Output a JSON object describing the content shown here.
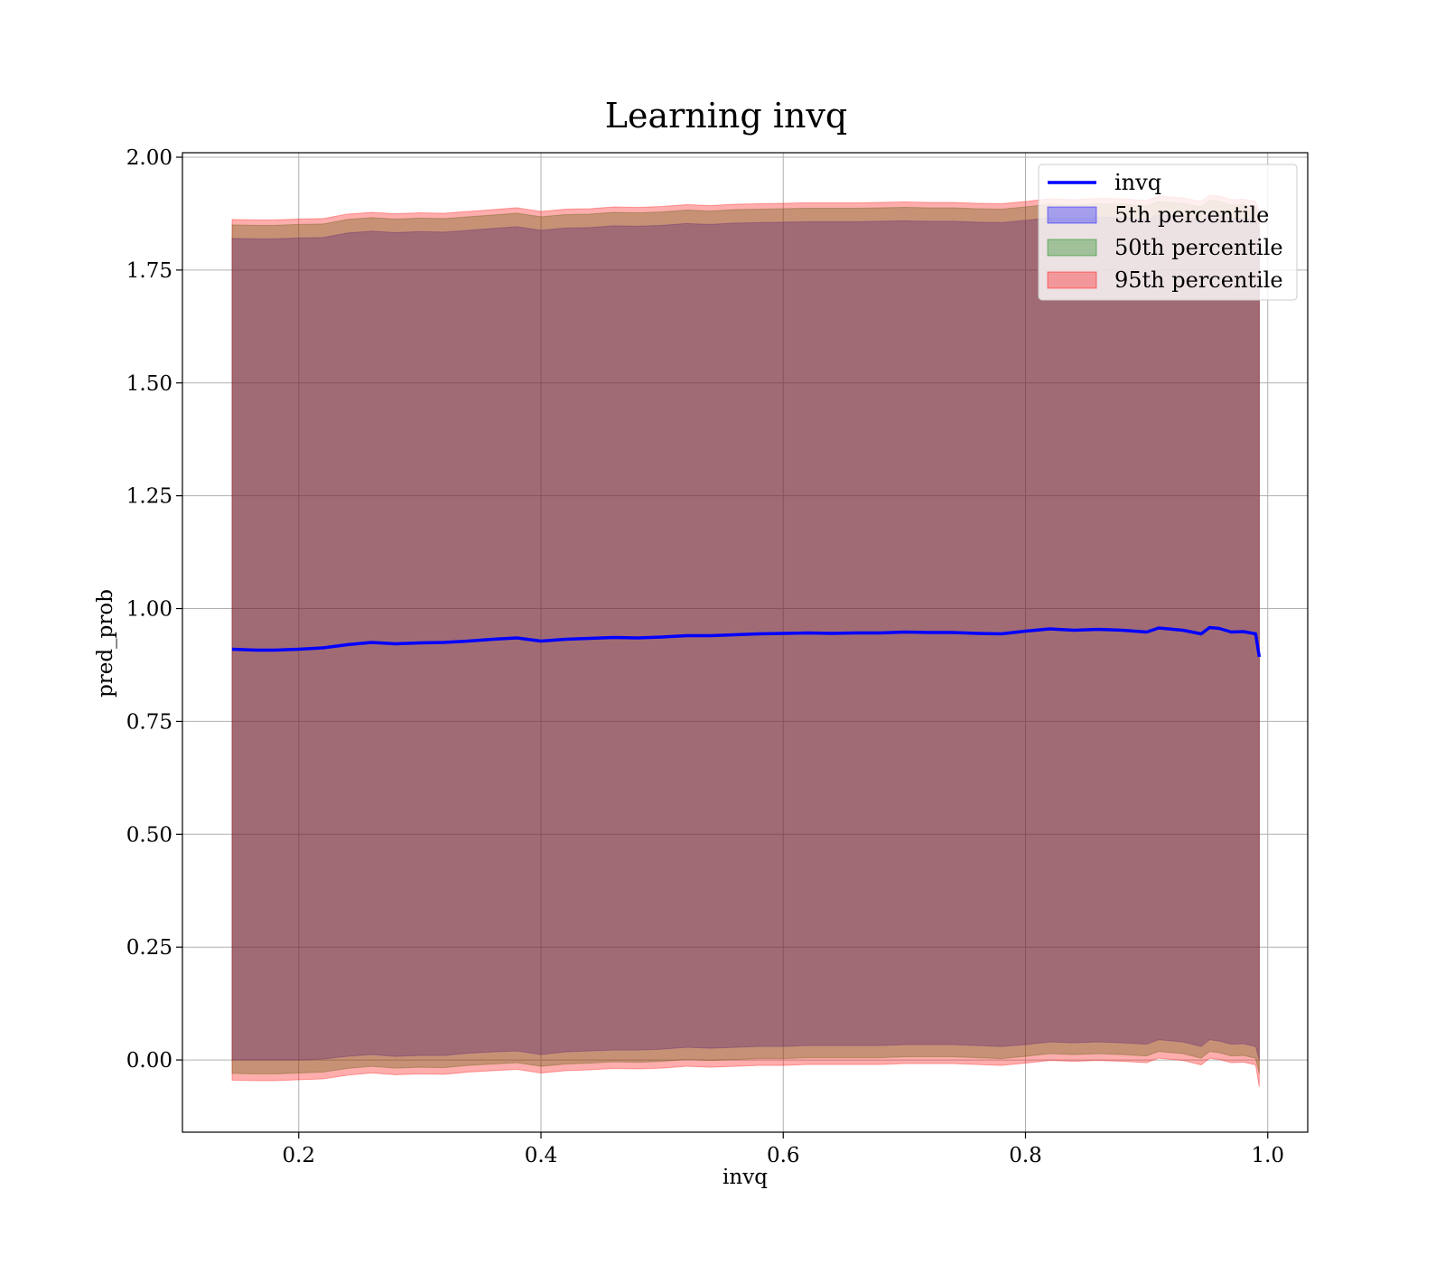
{
  "chart_data": {
    "type": "area",
    "title": "Learning invq",
    "xlabel": "invq",
    "ylabel": "pred_prob",
    "xlim": [
      0.104,
      1.033
    ],
    "ylim": [
      -0.16,
      2.01
    ],
    "xticks": [
      0.2,
      0.4,
      0.6,
      0.8,
      1.0
    ],
    "xtick_labels": [
      "0.2",
      "0.4",
      "0.6",
      "0.8",
      "1.0"
    ],
    "yticks": [
      0.0,
      0.25,
      0.5,
      0.75,
      1.0,
      1.25,
      1.5,
      1.75,
      2.0
    ],
    "ytick_labels": [
      "0.00",
      "0.25",
      "0.50",
      "0.75",
      "1.00",
      "1.25",
      "1.50",
      "1.75",
      "2.00"
    ],
    "grid": true,
    "legend_position": "top-right",
    "x": [
      0.145,
      0.165,
      0.18,
      0.2,
      0.22,
      0.24,
      0.26,
      0.28,
      0.3,
      0.32,
      0.34,
      0.36,
      0.38,
      0.4,
      0.42,
      0.44,
      0.46,
      0.48,
      0.5,
      0.52,
      0.54,
      0.56,
      0.58,
      0.6,
      0.62,
      0.64,
      0.66,
      0.68,
      0.7,
      0.72,
      0.74,
      0.76,
      0.78,
      0.8,
      0.82,
      0.84,
      0.86,
      0.88,
      0.9,
      0.91,
      0.93,
      0.945,
      0.952,
      0.96,
      0.97,
      0.98,
      0.99,
      0.993
    ],
    "series": [
      {
        "name": "invq",
        "kind": "line",
        "color": "#0000ff",
        "values": [
          0.91,
          0.908,
          0.908,
          0.91,
          0.913,
          0.92,
          0.925,
          0.922,
          0.924,
          0.925,
          0.928,
          0.932,
          0.935,
          0.928,
          0.932,
          0.934,
          0.936,
          0.935,
          0.937,
          0.94,
          0.94,
          0.942,
          0.944,
          0.945,
          0.946,
          0.945,
          0.946,
          0.946,
          0.948,
          0.947,
          0.947,
          0.945,
          0.944,
          0.95,
          0.955,
          0.952,
          0.954,
          0.952,
          0.948,
          0.957,
          0.952,
          0.944,
          0.958,
          0.956,
          0.948,
          0.949,
          0.944,
          0.893
        ]
      },
      {
        "name": "5th percentile",
        "kind": "band",
        "color": "#0000ff",
        "lower": [
          0.0,
          0.0,
          0.0,
          0.0,
          0.002,
          0.008,
          0.012,
          0.008,
          0.01,
          0.01,
          0.015,
          0.018,
          0.02,
          0.012,
          0.018,
          0.02,
          0.022,
          0.022,
          0.024,
          0.028,
          0.026,
          0.028,
          0.03,
          0.03,
          0.032,
          0.032,
          0.032,
          0.032,
          0.034,
          0.034,
          0.034,
          0.032,
          0.03,
          0.034,
          0.04,
          0.038,
          0.04,
          0.038,
          0.035,
          0.045,
          0.04,
          0.03,
          0.045,
          0.042,
          0.035,
          0.036,
          0.03,
          0.0
        ],
        "upper": [
          1.82,
          1.819,
          1.819,
          1.821,
          1.822,
          1.832,
          1.836,
          1.833,
          1.835,
          1.834,
          1.838,
          1.842,
          1.846,
          1.838,
          1.843,
          1.844,
          1.848,
          1.847,
          1.849,
          1.853,
          1.851,
          1.854,
          1.855,
          1.856,
          1.857,
          1.857,
          1.857,
          1.858,
          1.859,
          1.858,
          1.858,
          1.856,
          1.855,
          1.86,
          1.866,
          1.864,
          1.867,
          1.866,
          1.862,
          1.872,
          1.868,
          1.86,
          1.874,
          1.872,
          1.864,
          1.865,
          1.86,
          1.84
        ]
      },
      {
        "name": "50th percentile",
        "kind": "band",
        "color": "#008000",
        "lower": [
          -0.03,
          -0.031,
          -0.031,
          -0.029,
          -0.027,
          -0.019,
          -0.014,
          -0.018,
          -0.016,
          -0.017,
          -0.012,
          -0.009,
          -0.006,
          -0.014,
          -0.009,
          -0.007,
          -0.004,
          -0.005,
          -0.003,
          0.001,
          -0.001,
          0.001,
          0.003,
          0.003,
          0.005,
          0.005,
          0.005,
          0.005,
          0.007,
          0.007,
          0.007,
          0.005,
          0.003,
          0.008,
          0.014,
          0.012,
          0.014,
          0.012,
          0.009,
          0.019,
          0.014,
          0.004,
          0.019,
          0.016,
          0.009,
          0.01,
          0.004,
          -0.03
        ],
        "upper": [
          1.85,
          1.849,
          1.849,
          1.851,
          1.852,
          1.862,
          1.866,
          1.863,
          1.865,
          1.864,
          1.868,
          1.872,
          1.876,
          1.868,
          1.873,
          1.874,
          1.878,
          1.877,
          1.879,
          1.883,
          1.881,
          1.884,
          1.885,
          1.886,
          1.887,
          1.887,
          1.887,
          1.888,
          1.889,
          1.888,
          1.888,
          1.886,
          1.885,
          1.89,
          1.896,
          1.894,
          1.897,
          1.896,
          1.892,
          1.902,
          1.898,
          1.89,
          1.904,
          1.902,
          1.894,
          1.895,
          1.89,
          1.87
        ]
      },
      {
        "name": "95th percentile",
        "kind": "band",
        "color": "#ff0000",
        "lower": [
          -0.045,
          -0.046,
          -0.046,
          -0.044,
          -0.042,
          -0.034,
          -0.029,
          -0.033,
          -0.031,
          -0.032,
          -0.027,
          -0.024,
          -0.021,
          -0.029,
          -0.024,
          -0.022,
          -0.019,
          -0.02,
          -0.018,
          -0.014,
          -0.016,
          -0.014,
          -0.012,
          -0.012,
          -0.01,
          -0.01,
          -0.01,
          -0.01,
          -0.008,
          -0.008,
          -0.008,
          -0.01,
          -0.012,
          -0.007,
          -0.001,
          -0.003,
          -0.001,
          -0.003,
          -0.006,
          0.004,
          -0.001,
          -0.011,
          0.004,
          0.001,
          -0.006,
          -0.005,
          -0.011,
          -0.06
        ],
        "upper": [
          1.862,
          1.861,
          1.861,
          1.863,
          1.864,
          1.874,
          1.878,
          1.875,
          1.877,
          1.876,
          1.88,
          1.884,
          1.888,
          1.88,
          1.885,
          1.886,
          1.89,
          1.889,
          1.891,
          1.895,
          1.893,
          1.896,
          1.897,
          1.898,
          1.899,
          1.899,
          1.899,
          1.9,
          1.901,
          1.9,
          1.9,
          1.898,
          1.897,
          1.902,
          1.908,
          1.906,
          1.909,
          1.908,
          1.904,
          1.914,
          1.91,
          1.902,
          1.916,
          1.914,
          1.906,
          1.907,
          1.902,
          1.882
        ]
      }
    ],
    "band_alpha": 0.32,
    "legend_entries": [
      {
        "label": "invq",
        "kind": "line",
        "color": "#0000ff"
      },
      {
        "label": "5th percentile",
        "kind": "patch",
        "color": "#0000ff"
      },
      {
        "label": "50th percentile",
        "kind": "patch",
        "color": "#008000"
      },
      {
        "label": "95th percentile",
        "kind": "patch",
        "color": "#ff0000"
      }
    ]
  }
}
